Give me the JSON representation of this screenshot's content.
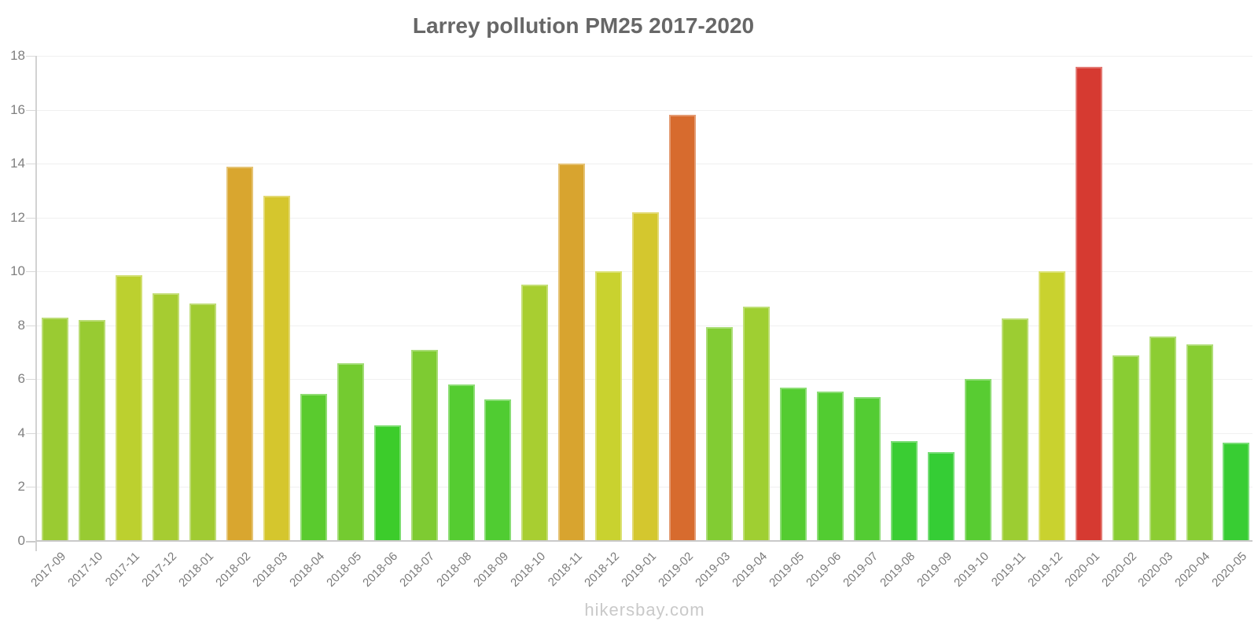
{
  "chart_data": {
    "type": "bar",
    "title": "Larrey pollution PM25 2017-2020",
    "xlabel": "",
    "ylabel": "",
    "ylim": [
      0,
      18
    ],
    "yticks": [
      0,
      2,
      4,
      6,
      8,
      10,
      12,
      14,
      16,
      18
    ],
    "grid": "horizontal",
    "legend": "none",
    "categories": [
      "2017-09",
      "2017-10",
      "2017-11",
      "2017-12",
      "2018-01",
      "2018-02",
      "2018-03",
      "2018-04",
      "2018-05",
      "2018-06",
      "2018-07",
      "2018-08",
      "2018-09",
      "2018-10",
      "2018-11",
      "2018-12",
      "2019-01",
      "2019-02",
      "2019-03",
      "2019-04",
      "2019-05",
      "2019-06",
      "2019-07",
      "2019-08",
      "2019-09",
      "2019-10",
      "2019-11",
      "2019-12",
      "2020-01",
      "2020-02",
      "2020-03",
      "2020-04",
      "2020-05"
    ],
    "values": [
      8.3,
      8.2,
      9.85,
      9.2,
      8.8,
      13.9,
      12.8,
      5.45,
      6.6,
      4.3,
      7.1,
      5.8,
      5.25,
      9.5,
      14.0,
      10.0,
      12.2,
      15.8,
      7.95,
      8.7,
      5.7,
      5.55,
      5.35,
      3.7,
      3.3,
      6.0,
      8.25,
      10.0,
      17.6,
      6.9,
      7.6,
      7.3,
      3.65
    ],
    "bar_colors": [
      "#9acb32",
      "#98cb32",
      "#bcd02f",
      "#a6cc31",
      "#a0cb32",
      "#d9a62f",
      "#d5c62d",
      "#5acb2e",
      "#74cb30",
      "#3ccc2b",
      "#7ecb32",
      "#55cc31",
      "#50cc32",
      "#a8ce31",
      "#d8a42f",
      "#c9d22f",
      "#d4c72e",
      "#d76b2e",
      "#82cc33",
      "#9fcf32",
      "#54cc31",
      "#52cc31",
      "#53cc33",
      "#3acd33",
      "#35cd35",
      "#58cc32",
      "#9ccd32",
      "#c9d22f",
      "#d63a31",
      "#89cd33",
      "#8ccd33",
      "#88cd33",
      "#38cd33"
    ],
    "color_scale_note": "green=low, yellow/orange=mid, red=high"
  },
  "footer": {
    "watermark": "hikersbay.com"
  },
  "colors": {
    "title_text": "#676767",
    "axis_labels": "#808080",
    "axis_line": "#c9c9c9",
    "gridline": "#f0f0f0",
    "watermark": "#c9c9c9",
    "background": "#ffffff"
  }
}
